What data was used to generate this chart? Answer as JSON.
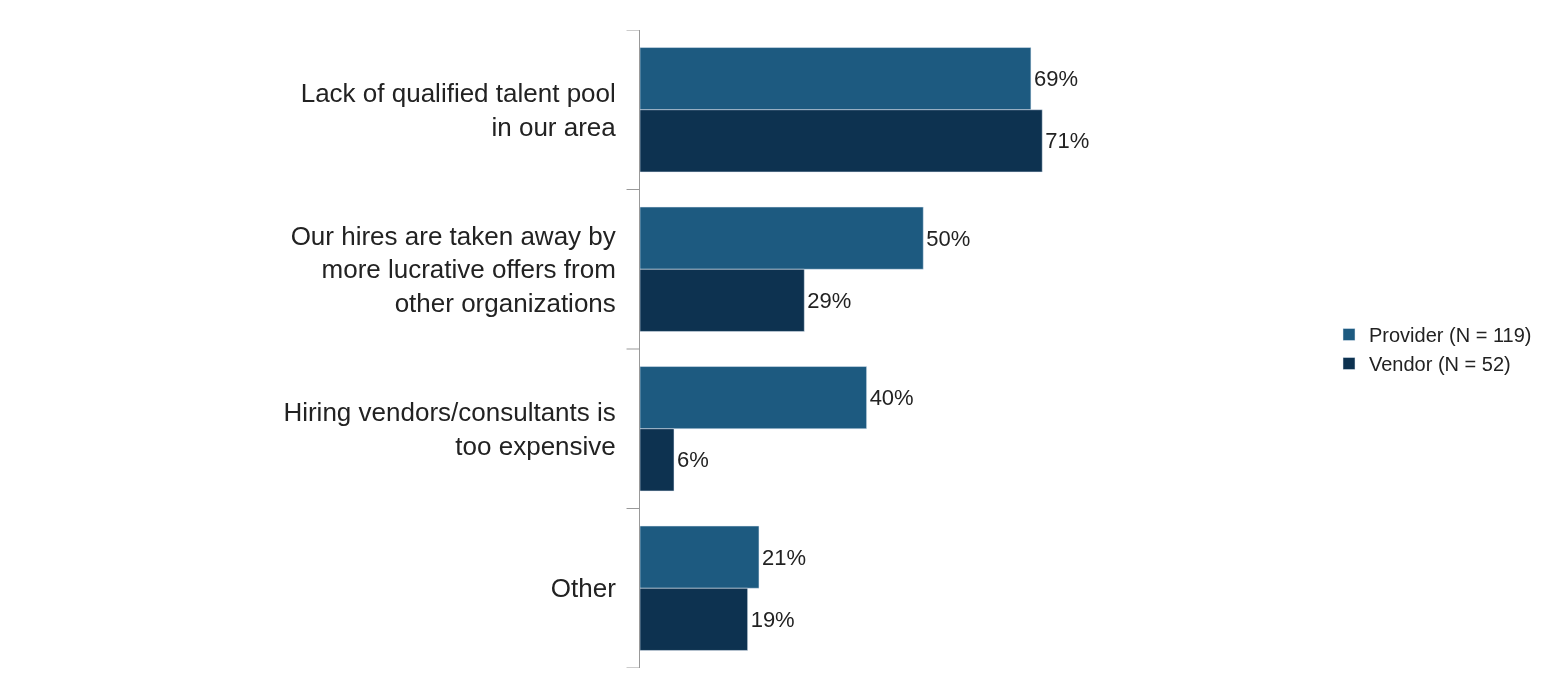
{
  "chart_data": {
    "type": "bar",
    "orientation": "horizontal",
    "categories": [
      "Lack of qualified talent pool in our area",
      "Our hires are taken away by more lucrative offers from other organizations",
      "Hiring vendors/consultants is too expensive",
      "Other"
    ],
    "series": [
      {
        "name": "Provider (N = 119)",
        "color": "#1d5a80",
        "values": [
          69,
          50,
          40,
          21
        ],
        "value_labels": [
          "69%",
          "50%",
          "40%",
          "21%"
        ]
      },
      {
        "name": "Vendor (N = 52)",
        "color": "#0d3250",
        "values": [
          71,
          29,
          6,
          19
        ],
        "value_labels": [
          "71%",
          "29%",
          "6%",
          "19%"
        ]
      }
    ],
    "legend": "right"
  }
}
